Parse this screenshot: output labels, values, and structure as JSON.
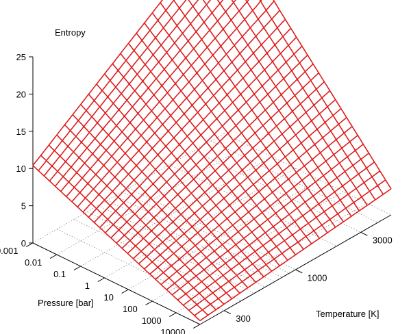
{
  "chart_data": {
    "type": "surface",
    "zlabel": "Entropy",
    "xlabel": "Pressure [bar]",
    "ylabel": "Temperature [K]",
    "x_scale": "log",
    "y_scale": "log",
    "x_ticks": [
      "0.001",
      "0.01",
      "0.1",
      "1",
      "10",
      "100",
      "1000",
      "10000"
    ],
    "x_tick_values": [
      0.001,
      0.01,
      0.1,
      1,
      10,
      100,
      1000,
      10000
    ],
    "y_ticks": [
      "300",
      "1000",
      "3000"
    ],
    "y_tick_values": [
      300,
      1000,
      3000
    ],
    "z_ticks": [
      "0",
      "5",
      "10",
      "15",
      "20",
      "25"
    ],
    "z_tick_values": [
      0,
      5,
      10,
      15,
      20,
      25
    ],
    "xlim": [
      0.001,
      10000
    ],
    "ylim": [
      200,
      5000
    ],
    "zlim": [
      0,
      25
    ],
    "grid": true,
    "mesh_color": "#dd1c1c",
    "corner_values": [
      {
        "pressure": 0.001,
        "temperature": 200,
        "entropy": 10.4
      },
      {
        "pressure": 10000,
        "temperature": 200,
        "entropy": 0.5
      },
      {
        "pressure": 0.001,
        "temperature": 5000,
        "entropy": 28.5
      },
      {
        "pressure": 10000,
        "temperature": 5000,
        "entropy": 3.5
      }
    ],
    "mesh_resolution": [
      30,
      24
    ]
  }
}
